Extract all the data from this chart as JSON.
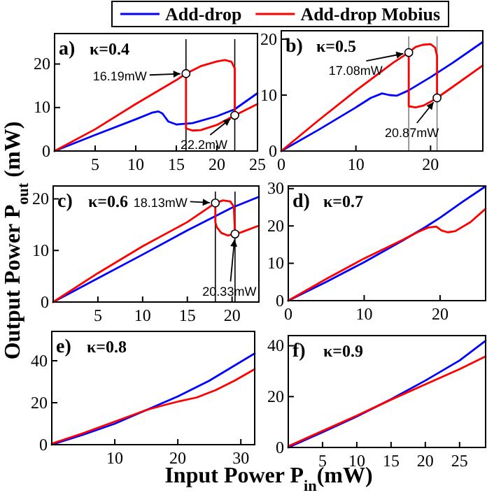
{
  "chart_data": [
    {
      "type": "line",
      "legend": "top",
      "xlim": [
        0,
        25
      ],
      "ylim": [
        0,
        27
      ],
      "xticks": [
        5,
        10,
        15,
        20,
        25
      ],
      "yticks": [
        0,
        10,
        20
      ],
      "annotations": [
        "a)",
        "κ=0.4",
        {
          "text": "16.19mW",
          "x": 16.19,
          "y": 17.8
        },
        {
          "text": "22.2mW",
          "x": 22.2,
          "y": 8.2
        }
      ],
      "ref_lines": [
        {
          "axis": "x",
          "value": 16.19,
          "color": "#000000"
        },
        {
          "axis": "x",
          "value": 22.2,
          "color": "#000000"
        }
      ],
      "series": [
        {
          "name": "Add-drop",
          "color": "#0000ff",
          "x": [
            0,
            5,
            10,
            12,
            12.8,
            13.3,
            14,
            15,
            17,
            20,
            22.2,
            25
          ],
          "values": [
            0,
            3.7,
            7.3,
            8.8,
            9.1,
            8.6,
            6.8,
            6.1,
            6.4,
            8,
            9.6,
            13.3
          ]
        },
        {
          "name": "Add-drop Mobius",
          "color": "#ff0000",
          "x": [
            0,
            5,
            10,
            15,
            16.19,
            18,
            20,
            21,
            21.8,
            22.2,
            22.2,
            20,
            18,
            17,
            16.19,
            16.19,
            16.19,
            17,
            18,
            20,
            22.2,
            25
          ],
          "values": [
            0,
            5,
            10.8,
            16.3,
            17.8,
            19.5,
            20.6,
            20.9,
            20.5,
            19,
            8.2,
            6,
            4.8,
            4.7,
            5.2,
            17.8,
            5.2,
            4.7,
            4.8,
            6,
            8.2,
            10.8
          ]
        }
      ]
    },
    {
      "type": "line",
      "xlim": [
        0,
        27
      ],
      "ylim": [
        0,
        21.5
      ],
      "xticks": [
        0,
        10,
        20
      ],
      "yticks": [
        0,
        10,
        20
      ],
      "annotations": [
        "b)",
        "κ=0.5",
        {
          "text": "17.08mW",
          "x": 17.08,
          "y": 17.6
        },
        {
          "text": "20.87mW",
          "x": 20.87,
          "y": 9.5
        }
      ],
      "ref_lines": [
        {
          "axis": "x",
          "value": 17.08,
          "color": "#808080"
        },
        {
          "axis": "x",
          "value": 20.87,
          "color": "#808080"
        }
      ],
      "series": [
        {
          "color": "#0000ff",
          "x": [
            0,
            5,
            10,
            12,
            13.5,
            14.5,
            15.5,
            17,
            20,
            23,
            27
          ],
          "values": [
            0,
            3.8,
            7.8,
            9.5,
            10.3,
            10,
            9.9,
            10.8,
            13.2,
            15.8,
            19.5
          ]
        },
        {
          "color": "#ff0000",
          "x": [
            0,
            5,
            10,
            15,
            17.08,
            18,
            19,
            20,
            20.6,
            20.87,
            20.87,
            20,
            19,
            18,
            17.08,
            17.08,
            17.08,
            18,
            19,
            20,
            20.87,
            23,
            27
          ],
          "values": [
            0,
            5.5,
            10.8,
            15.8,
            17.6,
            18.6,
            19,
            19.1,
            18.5,
            17,
            9.5,
            8.8,
            8.1,
            7.8,
            8,
            17.6,
            8,
            7.8,
            8.1,
            8.8,
            9.5,
            11.5,
            15.3
          ]
        }
      ]
    },
    {
      "type": "line",
      "xlim": [
        0,
        23
      ],
      "ylim": [
        0,
        22.5
      ],
      "xticks": [
        5,
        10,
        15,
        20
      ],
      "yticks": [
        0,
        10,
        20
      ],
      "ylabel": "Output Power P$_{out}$ (mW)",
      "annotations": [
        "c)",
        "κ=0.6",
        {
          "text": "18.13mW",
          "x": 18.13,
          "y": 19.2
        },
        {
          "text": "20.33mW",
          "x": 20.33,
          "y": 13.2
        }
      ],
      "ref_lines": [
        {
          "axis": "x",
          "value": 18.13,
          "color": "#000000"
        },
        {
          "axis": "x",
          "value": 20.33,
          "color": "#000000"
        }
      ],
      "series": [
        {
          "color": "#0000ff",
          "x": [
            0,
            5,
            10,
            15,
            20,
            23
          ],
          "values": [
            0,
            4.6,
            9.2,
            13.9,
            18.3,
            20.4
          ]
        },
        {
          "color": "#ff0000",
          "x": [
            0,
            5,
            10,
            15,
            18.13,
            19,
            19.8,
            20.2,
            20.33,
            19.5,
            18.8,
            18.3,
            18.13,
            18.13,
            18.13,
            18.3,
            18.8,
            19.5,
            20.33,
            21,
            23
          ],
          "values": [
            0,
            5.6,
            10.8,
            15.5,
            19.2,
            19.7,
            19.5,
            18.5,
            13.2,
            12.9,
            13.4,
            14.5,
            15.5,
            19.2,
            15.5,
            14.5,
            13.4,
            12.9,
            13.2,
            13.5,
            14.8
          ]
        }
      ]
    },
    {
      "type": "line",
      "xlim": [
        0,
        26
      ],
      "ylim": [
        0,
        30.7
      ],
      "xticks": [
        0,
        10,
        20
      ],
      "yticks": [
        0,
        10,
        20,
        30
      ],
      "annotations": [
        "d)",
        "κ=0.7"
      ],
      "series": [
        {
          "color": "#0000ff",
          "x": [
            0,
            5,
            10,
            15,
            18,
            20,
            23,
            26
          ],
          "values": [
            0,
            5,
            10.3,
            16,
            19.6,
            22.2,
            26.5,
            30.6
          ]
        },
        {
          "color": "#ff0000",
          "x": [
            0,
            5,
            10,
            15,
            17,
            18.5,
            19.5,
            20.2,
            21,
            22,
            24,
            26
          ],
          "values": [
            0,
            5.8,
            11.3,
            16.2,
            18.3,
            19.6,
            19.8,
            18.8,
            18.3,
            18.6,
            21,
            24.6
          ]
        }
      ]
    },
    {
      "type": "line",
      "xlim": [
        0,
        32.2
      ],
      "ylim": [
        0,
        54
      ],
      "xticks": [
        10,
        20,
        30
      ],
      "yticks": [
        0,
        20,
        40
      ],
      "xlabel": "Input Power P$_{in}$(mW)",
      "annotations": [
        "e)",
        "κ=0.8"
      ],
      "series": [
        {
          "color": "#0000ff",
          "x": [
            0,
            5,
            10,
            15,
            20,
            25,
            32.2
          ],
          "values": [
            0,
            4.8,
            10,
            16.5,
            23,
            30.5,
            43.5
          ]
        },
        {
          "color": "#ff0000",
          "x": [
            0,
            5,
            10,
            15,
            18,
            20,
            23,
            26,
            29,
            32.2
          ],
          "values": [
            0.5,
            5.5,
            11,
            16.5,
            19,
            20.5,
            22.5,
            26,
            30.5,
            36
          ]
        }
      ]
    },
    {
      "type": "line",
      "xlim": [
        0,
        28.8
      ],
      "ylim": [
        0,
        44
      ],
      "xticks": [
        5,
        10,
        15,
        20,
        25
      ],
      "yticks": [
        0,
        20,
        40
      ],
      "annotations": [
        "f)",
        "κ=0.9"
      ],
      "series": [
        {
          "color": "#0000ff",
          "x": [
            0,
            5,
            10,
            15,
            20,
            25,
            28.8
          ],
          "values": [
            0,
            6,
            12.2,
            19,
            26.3,
            34.2,
            42
          ]
        },
        {
          "color": "#ff0000",
          "x": [
            0,
            5,
            10,
            15,
            20,
            25,
            28.8
          ],
          "values": [
            0.5,
            6.5,
            12.5,
            18.8,
            24.8,
            30.8,
            35.8
          ]
        }
      ]
    }
  ]
}
